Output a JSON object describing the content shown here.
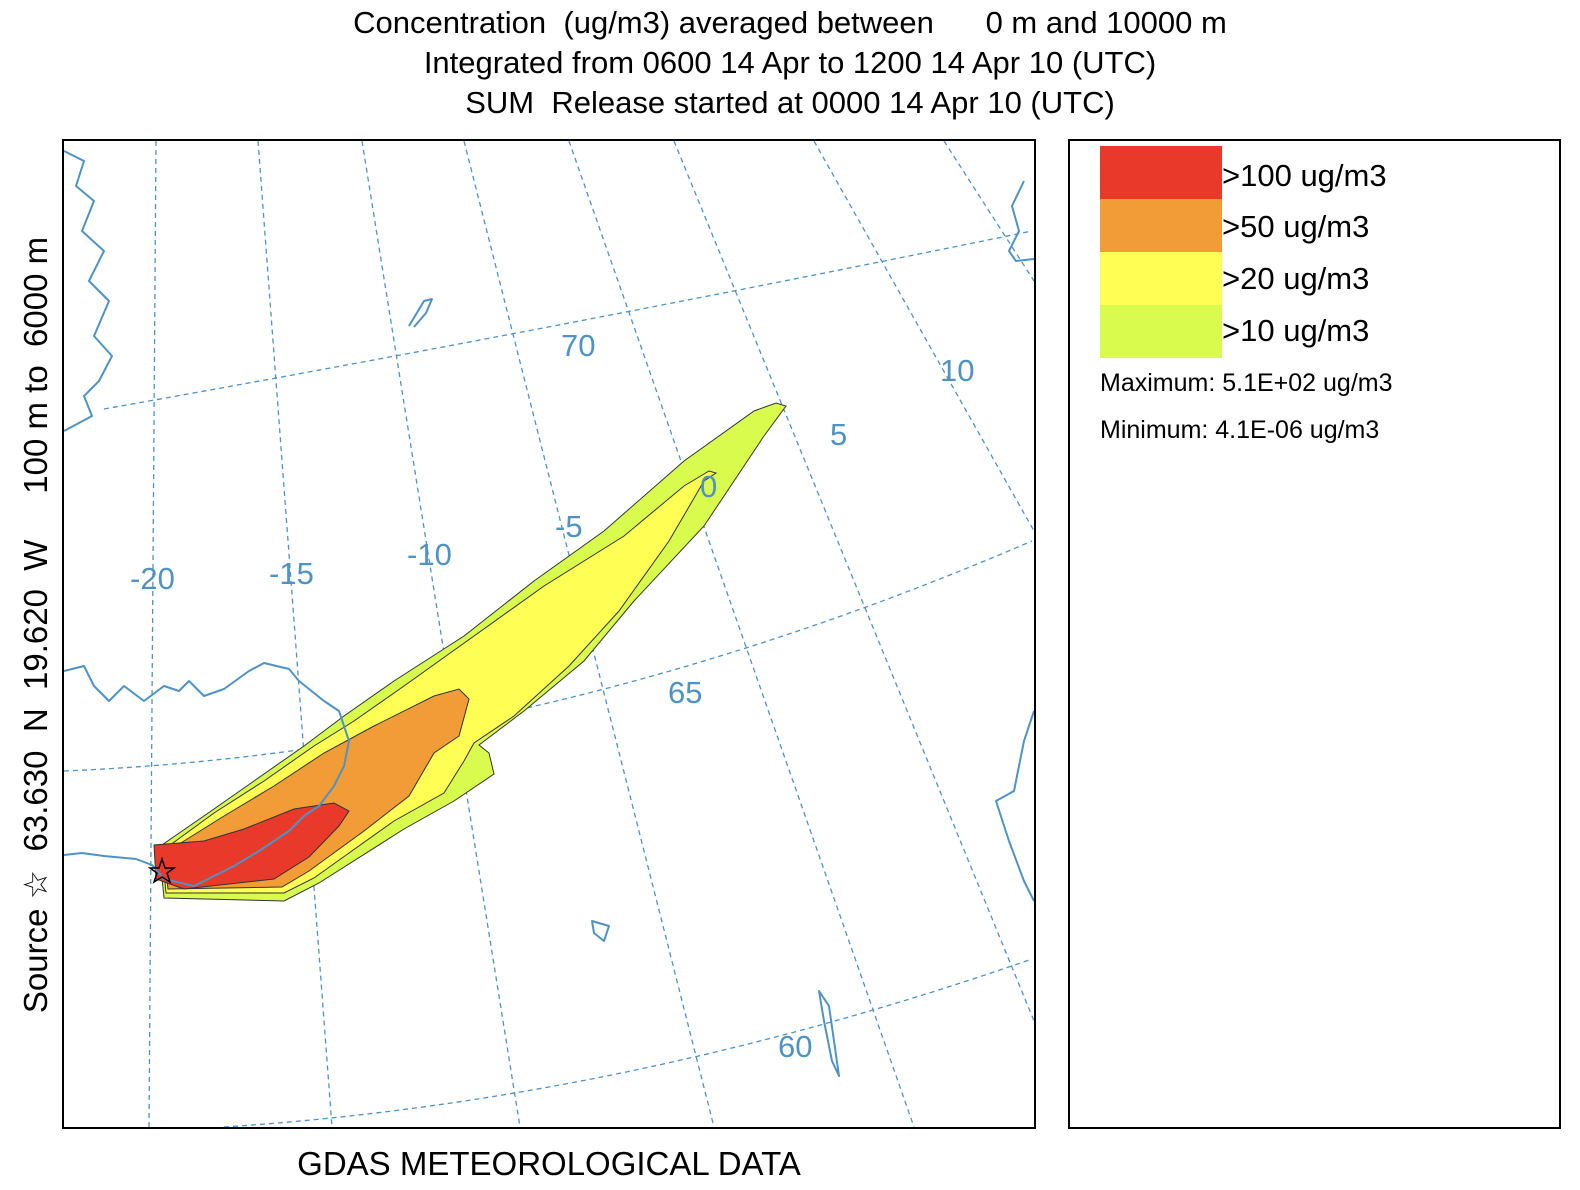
{
  "title": {
    "line1": "Concentration  (ug/m3) averaged between      0 m and 10000 m",
    "line2": "Integrated from 0600 14 Apr to 1200 14 Apr 10 (UTC)",
    "line3": "SUM  Release started at 0000 14 Apr 10 (UTC)"
  },
  "side_label": "Source ☆  63.630  N  19.620  W     100 m to  6000 m",
  "footer": "GDAS METEOROLOGICAL DATA",
  "map": {
    "graticule_color": "#4f93c4",
    "coast_color": "#4f93c4",
    "latitude_labels": [
      "70",
      "65",
      "60"
    ],
    "longitude_labels": [
      "-20",
      "-15",
      "-10",
      "-5",
      "0",
      "5",
      "10"
    ],
    "source_marker": "star-icon"
  },
  "legend": {
    "levels": [
      {
        "label": ">100 ug/m3",
        "color": "#e8392a"
      },
      {
        "label": ">50 ug/m3",
        "color": "#f29c38"
      },
      {
        "label": ">20 ug/m3",
        "color": "#fefe55"
      },
      {
        "label": ">10 ug/m3",
        "color": "#d9fb4e"
      }
    ],
    "maximum": "Maximum: 5.1E+02 ug/m3",
    "minimum": "Minimum: 4.1E-06 ug/m3"
  }
}
